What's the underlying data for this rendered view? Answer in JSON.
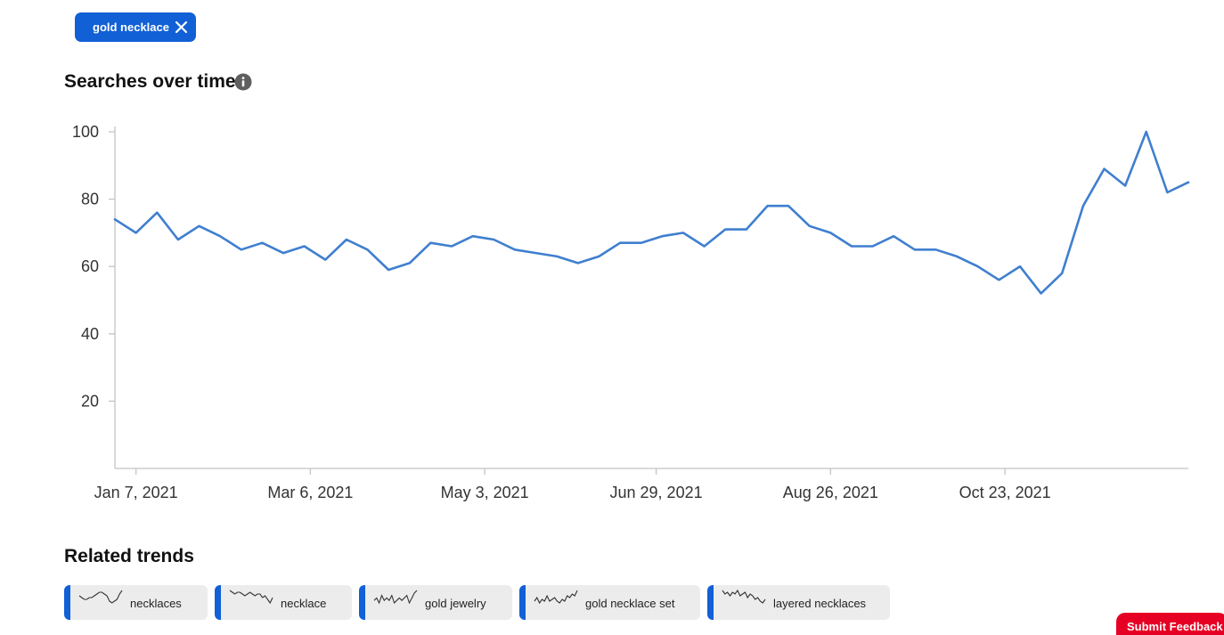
{
  "filter_chip": {
    "label": "gold necklace",
    "close_icon": "close-icon"
  },
  "searches_section": {
    "title": "Searches over time",
    "info_icon": "info-icon"
  },
  "chart_data": {
    "type": "line",
    "title": "",
    "xlabel": "",
    "ylabel": "",
    "ylim": [
      0,
      100
    ],
    "y_ticks": [
      20,
      40,
      60,
      80,
      100
    ],
    "x_ticks": [
      "Jan 7, 2021",
      "Mar 6, 2021",
      "May 3, 2021",
      "Jun 29, 2021",
      "Aug 26, 2021",
      "Oct 23, 2021"
    ],
    "grid": false,
    "legend": "none",
    "color": "#3f7fcf",
    "series": [
      {
        "x": [
          "Dec 31, 2020",
          "Jan 7, 2021",
          "Jan 14, 2021",
          "Jan 21, 2021",
          "Jan 28, 2021",
          "Feb 4, 2021",
          "Feb 11, 2021",
          "Feb 18, 2021",
          "Feb 25, 2021",
          "Mar 4, 2021",
          "Mar 11, 2021",
          "Mar 18, 2021",
          "Mar 25, 2021",
          "Apr 1, 2021",
          "Apr 8, 2021",
          "Apr 15, 2021",
          "Apr 22, 2021",
          "Apr 29, 2021",
          "May 6, 2021",
          "May 13, 2021",
          "May 20, 2021",
          "May 27, 2021",
          "Jun 3, 2021",
          "Jun 10, 2021",
          "Jun 17, 2021",
          "Jun 24, 2021",
          "Jul 1, 2021",
          "Jul 8, 2021",
          "Jul 15, 2021",
          "Jul 22, 2021",
          "Jul 29, 2021",
          "Aug 5, 2021",
          "Aug 12, 2021",
          "Aug 19, 2021",
          "Aug 26, 2021",
          "Sep 2, 2021",
          "Sep 9, 2021",
          "Sep 16, 2021",
          "Sep 23, 2021",
          "Sep 30, 2021",
          "Oct 7, 2021",
          "Oct 14, 2021",
          "Oct 21, 2021",
          "Oct 28, 2021",
          "Nov 4, 2021",
          "Nov 11, 2021",
          "Nov 18, 2021",
          "Nov 25, 2021",
          "Dec 2, 2021",
          "Dec 9, 2021",
          "Dec 16, 2021",
          "Dec 23, 2021"
        ],
        "values": [
          74,
          70,
          76,
          68,
          72,
          69,
          65,
          67,
          64,
          66,
          62,
          68,
          65,
          59,
          61,
          67,
          66,
          69,
          68,
          65,
          64,
          63,
          61,
          63,
          67,
          67,
          69,
          70,
          66,
          71,
          71,
          78,
          78,
          72,
          70,
          66,
          66,
          69,
          65,
          65,
          63,
          60,
          56,
          60,
          52,
          58,
          78,
          89,
          84,
          100,
          82,
          85
        ]
      }
    ]
  },
  "related_section": {
    "title": "Related trends"
  },
  "related_trends": [
    {
      "label": "necklaces",
      "sparkline": [
        6,
        5,
        4,
        4,
        5,
        5,
        6,
        7,
        8,
        8,
        7,
        6,
        3,
        2,
        3,
        4,
        7,
        9
      ]
    },
    {
      "label": "necklace",
      "sparkline": [
        9,
        8,
        7,
        8,
        8,
        7,
        6,
        7,
        8,
        7,
        6,
        7,
        7,
        5,
        6,
        4,
        2,
        5
      ]
    },
    {
      "label": "gold jewelry",
      "sparkline": [
        5,
        6,
        4,
        7,
        5,
        6,
        5,
        7,
        4,
        5,
        6,
        5,
        6,
        7,
        4,
        6,
        8,
        9
      ]
    },
    {
      "label": "gold necklace set",
      "sparkline": [
        3,
        5,
        2,
        4,
        3,
        6,
        3,
        4,
        5,
        3,
        2,
        4,
        3,
        6,
        5,
        7,
        6,
        9
      ]
    },
    {
      "label": "layered necklaces",
      "sparkline": [
        9,
        7,
        8,
        6,
        8,
        7,
        9,
        6,
        7,
        8,
        5,
        7,
        6,
        4,
        5,
        3,
        2,
        4
      ]
    }
  ],
  "feedback": {
    "label": "Submit Feedback"
  }
}
